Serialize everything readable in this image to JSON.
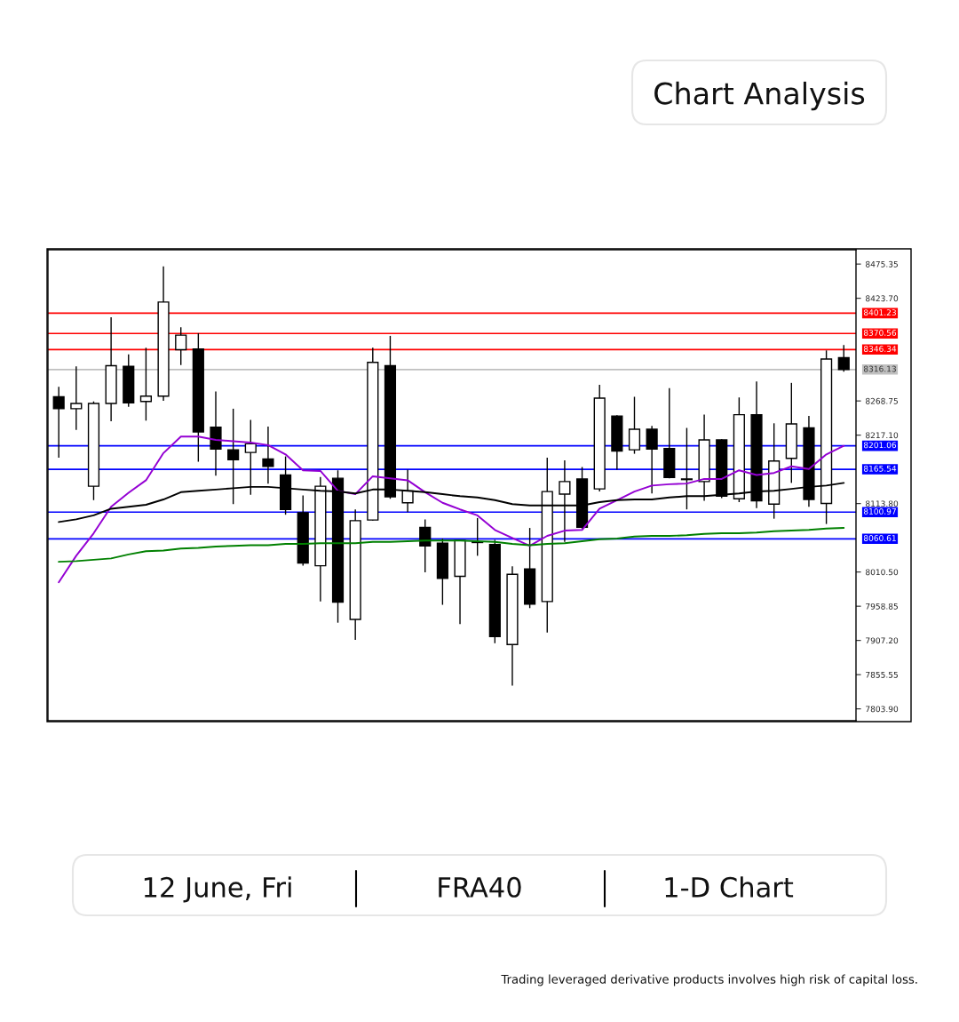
{
  "chart_data": {
    "type": "candlestick",
    "title": "Chart Analysis",
    "categories": [
      null,
      null,
      null,
      null,
      null,
      null,
      null,
      null,
      null,
      null,
      null,
      null,
      null,
      null,
      null,
      null,
      null,
      null,
      null,
      null,
      null,
      null,
      null,
      null,
      null,
      null,
      null,
      null,
      null,
      null,
      null,
      null,
      null,
      null,
      null,
      null,
      null,
      null,
      null,
      null,
      null,
      null,
      null,
      null,
      null,
      null
    ],
    "ohlc": [
      [
        8275,
        8290,
        8183,
        8257
      ],
      [
        8257,
        8321,
        8225,
        8265
      ],
      [
        8140,
        8268,
        8119,
        8265
      ],
      [
        8265,
        8395,
        8238,
        8322
      ],
      [
        8321,
        8339,
        8260,
        8266
      ],
      [
        8268,
        8349,
        8239,
        8276
      ],
      [
        8276,
        8472,
        8269,
        8418
      ],
      [
        8346,
        8380,
        8323,
        8368
      ],
      [
        8347,
        8371,
        8177,
        8222
      ],
      [
        8229,
        8283,
        8156,
        8196
      ],
      [
        8195,
        8257,
        8113,
        8180
      ],
      [
        8191,
        8240,
        8127,
        8204
      ],
      [
        8181,
        8230,
        8144,
        8170
      ],
      [
        8157,
        8185,
        8097,
        8105
      ],
      [
        8100,
        8126,
        8020,
        8024
      ],
      [
        8020,
        8154,
        7966,
        8140
      ],
      [
        8152,
        8164,
        7934,
        7965
      ],
      [
        7939,
        8105,
        7908,
        8088
      ],
      [
        8089,
        8349,
        8088,
        8327
      ],
      [
        8322,
        8367,
        8121,
        8124
      ],
      [
        8115,
        8165,
        8101,
        8133
      ],
      [
        8078,
        8090,
        8010,
        8050
      ],
      [
        8054,
        8061,
        7961,
        8001
      ],
      [
        8004,
        8058,
        7932,
        8058
      ],
      [
        8055,
        8092,
        8035,
        8056
      ],
      [
        8052,
        8059,
        7903,
        7913
      ],
      [
        7901,
        8019,
        7839,
        8007
      ],
      [
        8015,
        8077,
        7956,
        7962
      ],
      [
        7966,
        8183,
        7919,
        8132
      ],
      [
        8128,
        8179,
        8056,
        8147
      ],
      [
        8151,
        8169,
        8076,
        8078
      ],
      [
        8136,
        8293,
        8132,
        8273
      ],
      [
        8246,
        8247,
        8165,
        8193
      ],
      [
        8195,
        8275,
        8189,
        8226
      ],
      [
        8226,
        8231,
        8129,
        8196
      ],
      [
        8197,
        8288,
        8152,
        8153
      ],
      [
        8150,
        8228,
        8105,
        8151
      ],
      [
        8147,
        8248,
        8118,
        8210
      ],
      [
        8210,
        8211,
        8122,
        8125
      ],
      [
        8121,
        8274,
        8116,
        8248
      ],
      [
        8248,
        8298,
        8107,
        8118
      ],
      [
        8113,
        8235,
        8091,
        8178
      ],
      [
        8182,
        8296,
        8145,
        8234
      ],
      [
        8228,
        8246,
        8109,
        8120
      ],
      [
        8114,
        8345,
        8083,
        8332
      ],
      [
        8334,
        8353,
        8313,
        8316
      ]
    ],
    "series": [
      {
        "type": "line",
        "color": "#9400d3",
        "values": [
          7995,
          8035,
          8069,
          8109,
          8130,
          8149,
          8190,
          8215,
          8215,
          8210,
          8208,
          8206,
          8202,
          8188,
          8164,
          8163,
          8133,
          8128,
          8155,
          8152,
          8149,
          8131,
          8115,
          8105,
          8096,
          8074,
          8062,
          8050,
          8065,
          8073,
          8074,
          8106,
          8119,
          8132,
          8141,
          8143,
          8144,
          8151,
          8151,
          8164,
          8157,
          8160,
          8170,
          8166,
          8188,
          8201
        ]
      },
      {
        "type": "line",
        "color": "#000000",
        "values": [
          8086,
          8090,
          8096,
          8106,
          8109,
          8112,
          8120,
          8131,
          8133,
          8135,
          8137,
          8139,
          8139,
          8137,
          8135,
          8133,
          8132,
          8129,
          8135,
          8135,
          8133,
          8131,
          8128,
          8125,
          8123,
          8119,
          8113,
          8111,
          8111,
          8111,
          8111,
          8116,
          8119,
          8120,
          8120,
          8123,
          8125,
          8125,
          8127,
          8129,
          8132,
          8133,
          8136,
          8139,
          8141,
          8145
        ]
      },
      {
        "type": "line",
        "color": "#008000",
        "values": [
          8026,
          8027,
          8029,
          8031,
          8037,
          8042,
          8043,
          8046,
          8047,
          8049,
          8050,
          8051,
          8051,
          8053,
          8053,
          8054,
          8054,
          8054,
          8056,
          8056,
          8057,
          8058,
          8058,
          8058,
          8057,
          8056,
          8053,
          8051,
          8053,
          8054,
          8057,
          8060,
          8061,
          8064,
          8065,
          8065,
          8066,
          8068,
          8069,
          8069,
          8070,
          8072,
          8073,
          8074,
          8076,
          8077
        ]
      }
    ],
    "ylim": [
      7786,
      8497
    ],
    "yticks": [
      {
        "value": 8475.35,
        "label": "8475.35"
      },
      {
        "value": 8423.7,
        "label": "8423.70"
      },
      {
        "value": 8268.75,
        "label": "8268.75"
      },
      {
        "value": 8217.1,
        "label": "8217.10"
      },
      {
        "value": 8113.8,
        "label": "8113.80"
      },
      {
        "value": 8010.5,
        "label": "8010.50"
      },
      {
        "value": 7958.85,
        "label": "7958.85"
      },
      {
        "value": 7907.2,
        "label": "7907.20"
      },
      {
        "value": 7855.55,
        "label": "7855.55"
      },
      {
        "value": 7803.9,
        "label": "7803.90"
      }
    ],
    "tick_labels": "y",
    "ref_lines": [
      {
        "axis": "y",
        "value": 8401.23,
        "label": "8401.23",
        "color": "#ff0000"
      },
      {
        "axis": "y",
        "value": 8370.56,
        "label": "8370.56",
        "color": "#ff0000"
      },
      {
        "axis": "y",
        "value": 8346.34,
        "label": "8346.34",
        "color": "#ff0000"
      },
      {
        "axis": "y",
        "value": 8316.13,
        "label": "8316.13",
        "color": "#c0c0c0"
      },
      {
        "axis": "y",
        "value": 8201.06,
        "label": "8201.06",
        "color": "#0000ff"
      },
      {
        "axis": "y",
        "value": 8165.54,
        "label": "8165.54",
        "color": "#0000ff"
      },
      {
        "axis": "y",
        "value": 8100.97,
        "label": "8100.97",
        "color": "#0000ff"
      },
      {
        "axis": "y",
        "value": 8060.61,
        "label": "8060.61",
        "color": "#0000ff"
      }
    ],
    "annotations": [
      "12 June, Fri",
      "FRA40",
      "1-D Chart",
      "Trading leveraged derivative products involves high risk of capital loss."
    ],
    "grid": false,
    "legend": false
  }
}
